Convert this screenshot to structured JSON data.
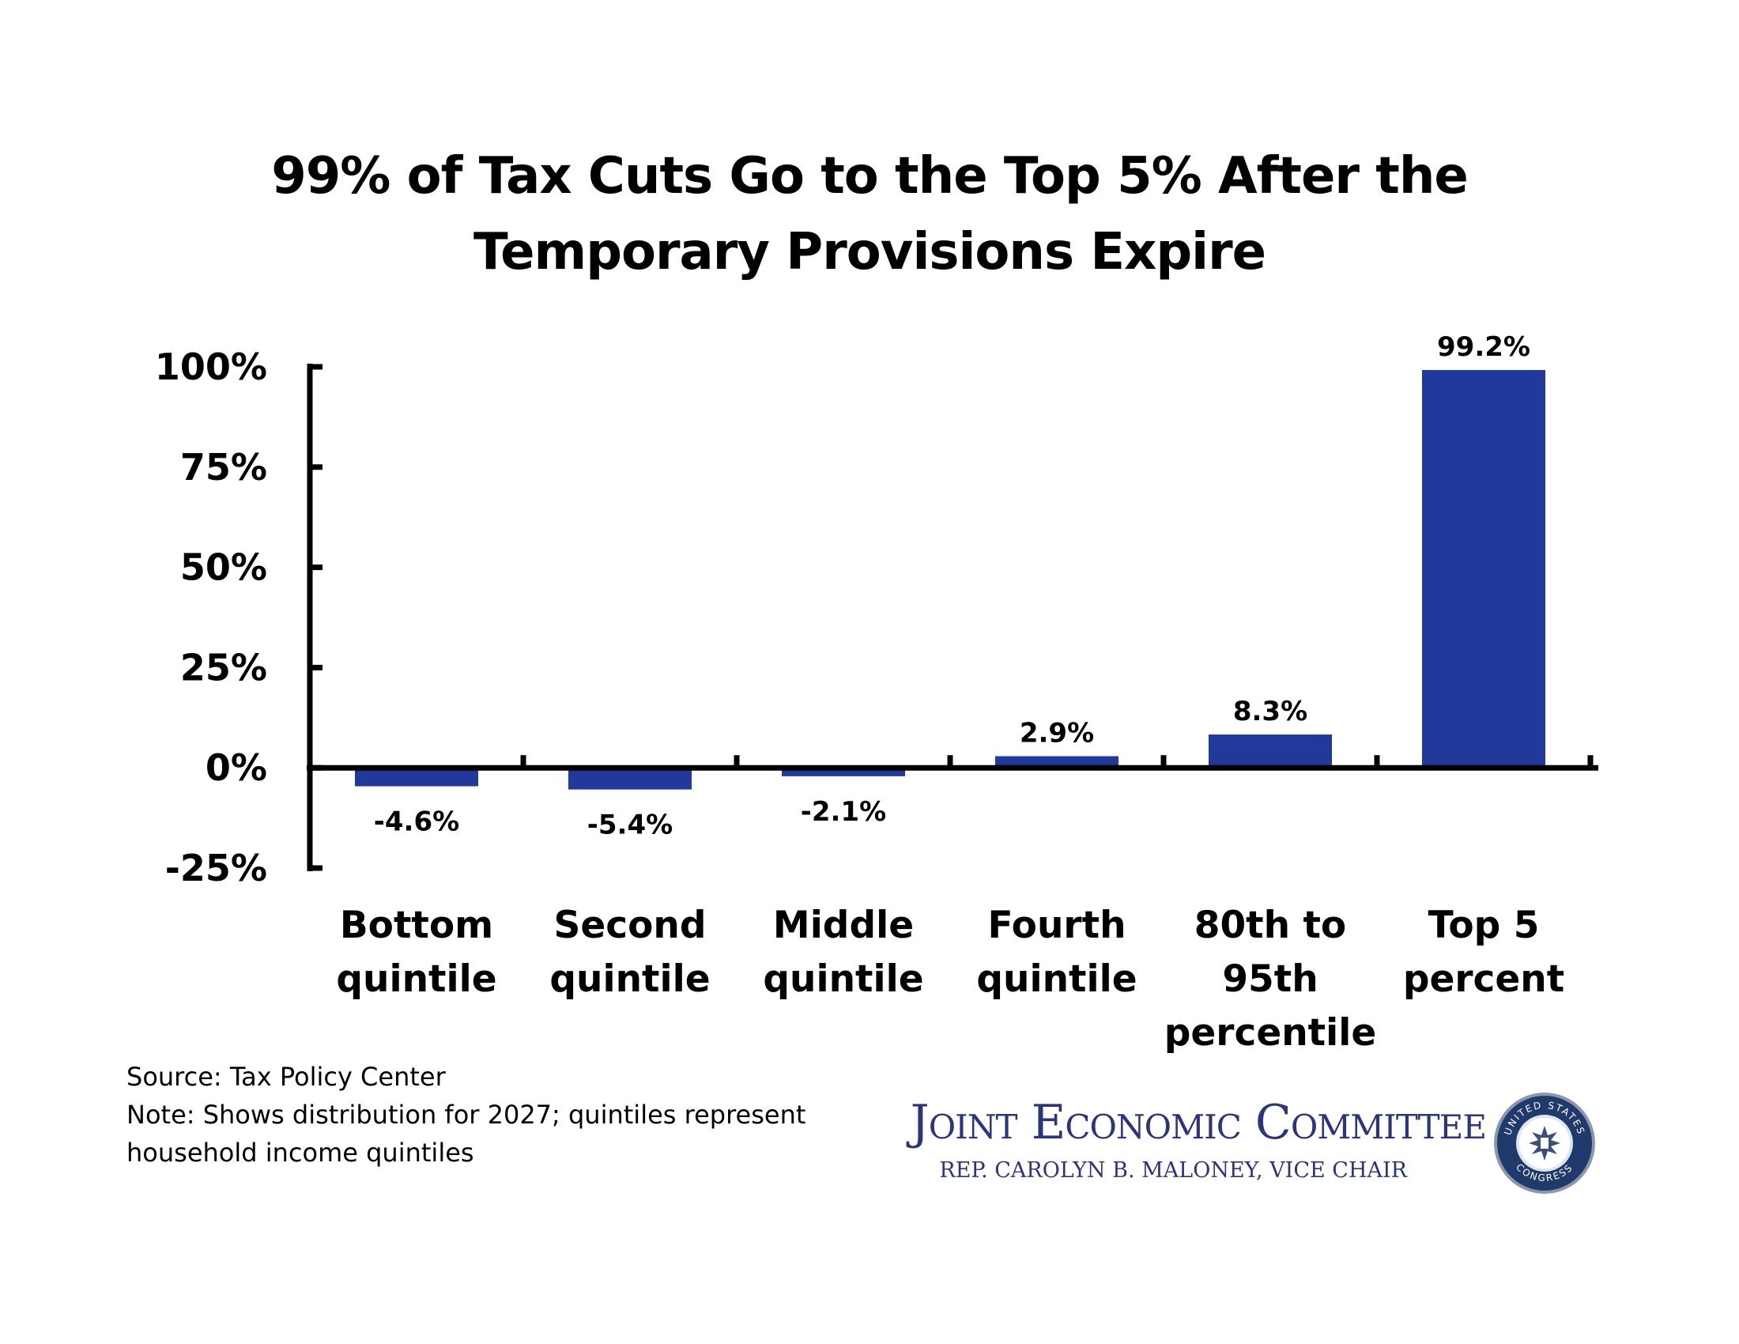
{
  "chart_data": {
    "type": "bar",
    "title": [
      "99% of Tax Cuts Go to the Top 5% After the",
      "Temporary Provisions Expire"
    ],
    "categories": [
      [
        "Bottom",
        "quintile"
      ],
      [
        "Second",
        "quintile"
      ],
      [
        "Middle",
        "quintile"
      ],
      [
        "Fourth",
        "quintile"
      ],
      [
        "80th to",
        "95th",
        "percentile"
      ],
      [
        "Top 5",
        "percent"
      ]
    ],
    "values": [
      -4.6,
      -5.4,
      -2.1,
      2.9,
      8.3,
      99.2
    ],
    "data_labels": [
      "-4.6%",
      "-5.4%",
      "-2.1%",
      "2.9%",
      "8.3%",
      "99.2%"
    ],
    "yticks": [
      100,
      75,
      50,
      25,
      0,
      -25
    ],
    "ytick_labels": [
      "100%",
      "75%",
      "50%",
      "25%",
      "0%",
      "-25%"
    ],
    "ylim": [
      -25,
      100
    ],
    "bar_color": "#21399a",
    "grid": false,
    "legend": "none"
  },
  "notes": {
    "source": "Source: Tax Policy Center",
    "note_line1": "Note: Shows distribution for 2027; quintiles represent",
    "note_line2": "household income quintiles"
  },
  "logo": {
    "name": "Joint Economic Committee",
    "subtitle": "REP. CAROLYN B. MALONEY, VICE CHAIR",
    "seal_icon": "us-congress-seal-icon",
    "seal_text_top": "UNITED STATES",
    "seal_text_bottom": "CONGRESS",
    "color": "#2b3578"
  }
}
